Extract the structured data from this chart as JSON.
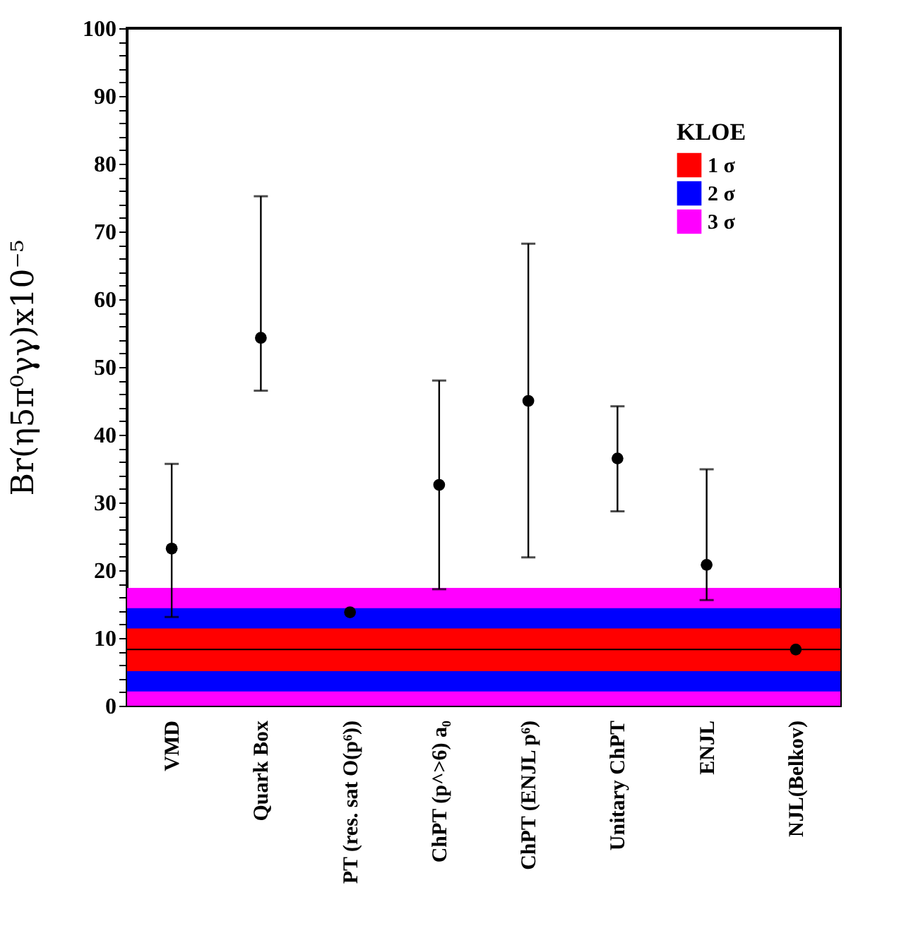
{
  "chart_data": {
    "type": "scatter",
    "ylabel": "Br(η5π⁰γγ)x10⁻⁵",
    "legend_title": "KLOE",
    "legend": "top right",
    "grid": false,
    "marker": "circle",
    "categories": [
      "VMD",
      "Quark Box",
      "PT (res. sat O(p⁶))",
      "ChPT (p^>6) a₀",
      "ChPT (ENJL p⁶)",
      "Unitary ChPT",
      "ENJL",
      "NJL(Belkov)"
    ],
    "series": [
      {
        "color": "#000000",
        "values": [
          23.2,
          54.3,
          13.8,
          32.6,
          45.0,
          36.5,
          20.8,
          8.3
        ],
        "errors": [
          [
            13.1,
            35.7
          ],
          [
            46.5,
            75.2
          ],
          null,
          [
            17.2,
            48.0
          ],
          [
            21.9,
            68.2
          ],
          [
            28.7,
            44.2
          ],
          [
            15.6,
            34.9
          ],
          null
        ]
      }
    ],
    "ylim": [
      0,
      100
    ],
    "yticks": [
      0,
      {
        "value": 2,
        "label": null
      },
      {
        "value": 4,
        "label": null
      },
      {
        "value": 6,
        "label": null
      },
      {
        "value": 8,
        "label": null
      },
      10,
      {
        "value": 12,
        "label": null
      },
      {
        "value": 14,
        "label": null
      },
      {
        "value": 16,
        "label": null
      },
      {
        "value": 18,
        "label": null
      },
      20,
      {
        "value": 22,
        "label": null
      },
      {
        "value": 24,
        "label": null
      },
      {
        "value": 26,
        "label": null
      },
      {
        "value": 28,
        "label": null
      },
      30,
      {
        "value": 32,
        "label": null
      },
      {
        "value": 34,
        "label": null
      },
      {
        "value": 36,
        "label": null
      },
      {
        "value": 38,
        "label": null
      },
      40,
      {
        "value": 42,
        "label": null
      },
      {
        "value": 44,
        "label": null
      },
      {
        "value": 46,
        "label": null
      },
      {
        "value": 48,
        "label": null
      },
      50,
      {
        "value": 52,
        "label": null
      },
      {
        "value": 54,
        "label": null
      },
      {
        "value": 56,
        "label": null
      },
      {
        "value": 58,
        "label": null
      },
      60,
      {
        "value": 62,
        "label": null
      },
      {
        "value": 64,
        "label": null
      },
      {
        "value": 66,
        "label": null
      },
      {
        "value": 68,
        "label": null
      },
      70,
      {
        "value": 72,
        "label": null
      },
      {
        "value": 74,
        "label": null
      },
      {
        "value": 76,
        "label": null
      },
      {
        "value": 78,
        "label": null
      },
      80,
      {
        "value": 82,
        "label": null
      },
      {
        "value": 84,
        "label": null
      },
      {
        "value": 86,
        "label": null
      },
      {
        "value": 88,
        "label": null
      },
      90,
      {
        "value": 92,
        "label": null
      },
      {
        "value": 94,
        "label": null
      },
      {
        "value": 96,
        "label": null
      },
      {
        "value": 98,
        "label": null
      },
      100
    ],
    "bands": [
      {
        "axis": "y",
        "from": 5.1,
        "to": 11.4,
        "label": "1 σ",
        "color": "#ff0000"
      },
      {
        "axis": "y",
        "from": 2.1,
        "to": 14.4,
        "label": "2 σ",
        "color": "#0000ff"
      },
      {
        "axis": "y",
        "from": 0,
        "to": 17.4,
        "label": "3 σ",
        "color": "#ff00ff"
      }
    ],
    "ref_lines": [
      {
        "axis": "y",
        "value": 8.3,
        "color": "#000000"
      }
    ]
  }
}
